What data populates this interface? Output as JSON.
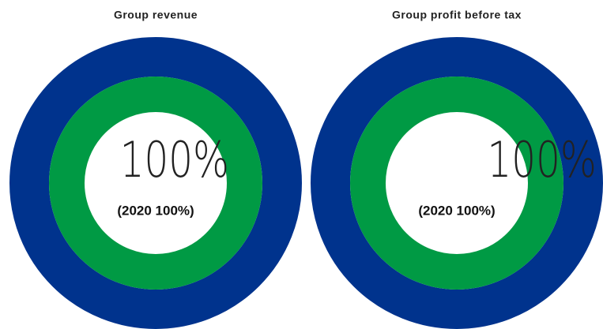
{
  "chart_data": [
    {
      "type": "donut",
      "title": "Group revenue",
      "series": [
        {
          "color": "#00338d",
          "values": [
            100
          ],
          "value_labels": [
            "100%"
          ]
        },
        {
          "color": "#009a44",
          "values": [
            100
          ],
          "value_labels": [
            "(2020 100%)"
          ]
        }
      ]
    },
    {
      "type": "donut",
      "title": "Group profit before tax",
      "series": [
        {
          "color": "#00338d",
          "values": [
            100
          ],
          "value_labels": [
            "100%"
          ]
        },
        {
          "color": "#009a44",
          "values": [
            100
          ],
          "value_labels": [
            "(2020 100%)"
          ]
        }
      ]
    }
  ]
}
